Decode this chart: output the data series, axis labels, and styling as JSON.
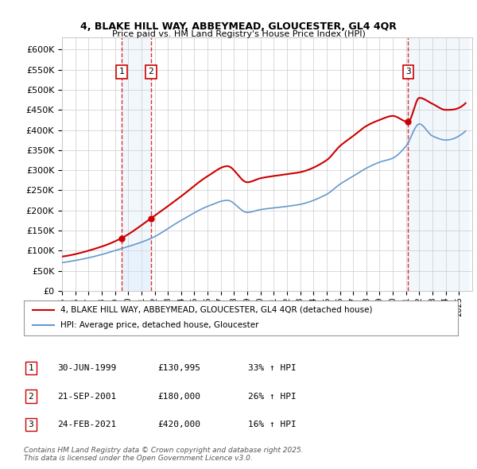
{
  "title_line1": "4, BLAKE HILL WAY, ABBEYMEAD, GLOUCESTER, GL4 4QR",
  "title_line2": "Price paid vs. HM Land Registry's House Price Index (HPI)",
  "ylabel_ticks": [
    0,
    50000,
    100000,
    150000,
    200000,
    250000,
    300000,
    350000,
    400000,
    450000,
    500000,
    550000,
    600000
  ],
  "ylim": [
    0,
    630000
  ],
  "xlim_start": 1995.0,
  "xlim_end": 2026.0,
  "sale_dates": [
    1999.5,
    2001.72,
    2021.15
  ],
  "sale_prices": [
    130995,
    180000,
    420000
  ],
  "sale_labels": [
    "1",
    "2",
    "3"
  ],
  "legend_entries": [
    "4, BLAKE HILL WAY, ABBEYMEAD, GLOUCESTER, GL4 4QR (detached house)",
    "HPI: Average price, detached house, Gloucester"
  ],
  "table_data": [
    [
      "1",
      "30-JUN-1999",
      "£130,995",
      "33% ↑ HPI"
    ],
    [
      "2",
      "21-SEP-2001",
      "£180,000",
      "26% ↑ HPI"
    ],
    [
      "3",
      "24-FEB-2021",
      "£420,000",
      "16% ↑ HPI"
    ]
  ],
  "footer": "Contains HM Land Registry data © Crown copyright and database right 2025.\nThis data is licensed under the Open Government Licence v3.0.",
  "line_color_red": "#cc0000",
  "line_color_blue": "#6699cc",
  "shading_color": "#ddeeff",
  "grid_color": "#cccccc",
  "background_color": "#ffffff"
}
